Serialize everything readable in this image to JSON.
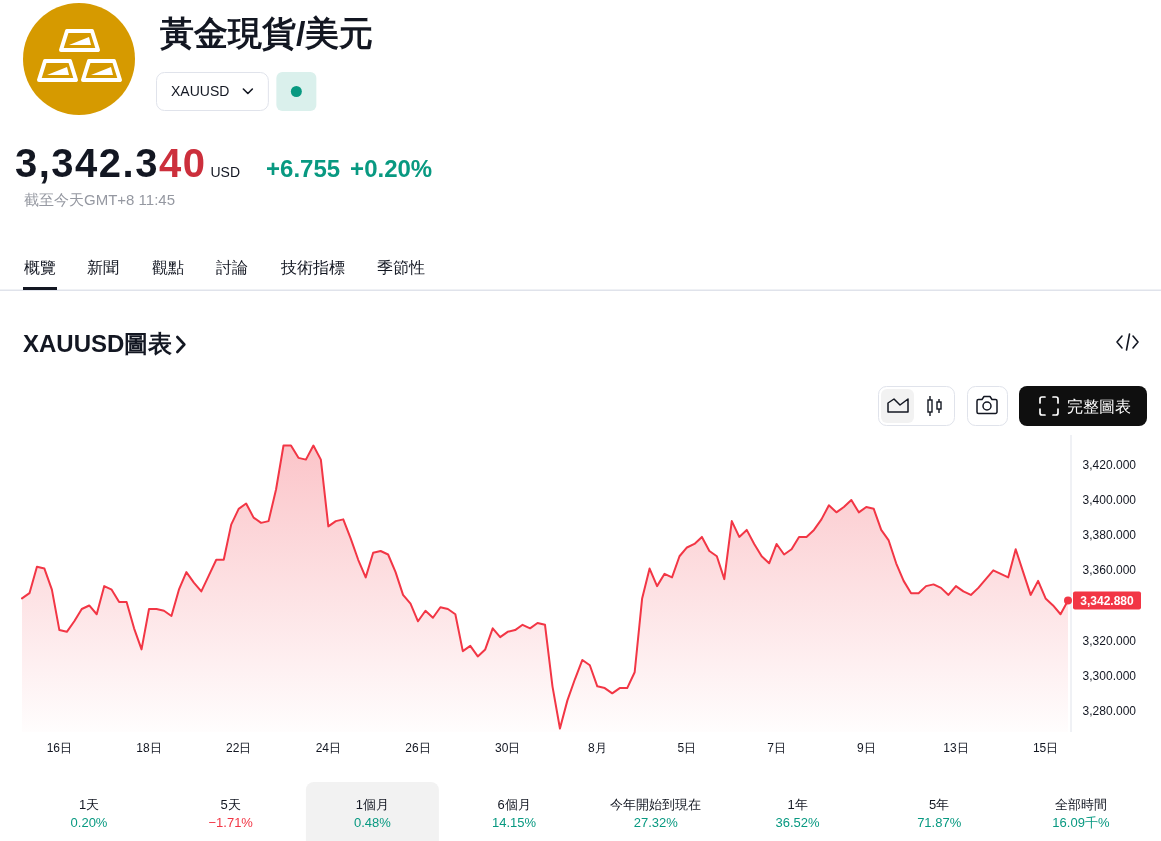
{
  "chart_data": {
    "type": "area",
    "title": "黃金現貨/美元",
    "subtitle": "XAUUSD圖表",
    "annotations": [
      "XAUUSD",
      "3,342.340",
      "USD",
      "+6.755",
      "+0.20%",
      "截至今天GMT+8 11:45",
      "概覽",
      "新聞",
      "觀點",
      "討論",
      "技術指標",
      "季節性",
      "完整圖表",
      "1天",
      "0.20%",
      "5天",
      "−1.71%",
      "1個月",
      "0.48%",
      "6個月",
      "14.15%",
      "今年開始到現在",
      "27.32%",
      "1年",
      "36.52%",
      "5年",
      "71.87%",
      "全部時間",
      "16.09千%",
      "3,342.880"
    ],
    "categories": [
      null,
      null,
      null,
      null,
      null,
      "16日",
      null,
      null,
      null,
      null,
      null,
      null,
      null,
      null,
      null,
      null,
      null,
      "18日",
      null,
      null,
      null,
      null,
      null,
      null,
      null,
      null,
      null,
      null,
      null,
      "22日",
      null,
      null,
      null,
      null,
      null,
      null,
      null,
      null,
      null,
      null,
      null,
      "24日",
      null,
      null,
      null,
      null,
      null,
      null,
      null,
      null,
      null,
      null,
      null,
      "26日",
      null,
      null,
      null,
      null,
      null,
      null,
      null,
      null,
      null,
      null,
      null,
      "30日",
      null,
      null,
      null,
      null,
      null,
      null,
      null,
      null,
      null,
      null,
      null,
      "8月",
      null,
      null,
      null,
      null,
      null,
      null,
      null,
      null,
      null,
      null,
      null,
      "5日",
      null,
      null,
      null,
      null,
      null,
      null,
      null,
      null,
      null,
      null,
      null,
      "7日",
      null,
      null,
      null,
      null,
      null,
      null,
      null,
      null,
      null,
      null,
      null,
      "9日",
      null,
      null,
      null,
      null,
      null,
      null,
      null,
      null,
      null,
      null,
      null,
      "13日",
      null,
      null,
      null,
      null,
      null,
      null,
      null,
      null,
      null,
      null,
      null,
      "15日",
      null,
      null,
      null
    ],
    "series": [
      {
        "color": "#f23645",
        "values": [
          3344,
          3347,
          3362,
          3361,
          3349,
          3326,
          3325,
          3331,
          3338,
          3340,
          3335,
          3351,
          3349,
          3342,
          3342,
          3327,
          3315,
          3338,
          3338,
          3337,
          3334,
          3349,
          3359,
          3353,
          3348,
          3357,
          3366,
          3366,
          3386,
          3395,
          3398,
          3390,
          3387,
          3388,
          3406,
          3431,
          3431,
          3424,
          3423,
          3431,
          3423,
          3385,
          3388,
          3389,
          3378,
          3366,
          3356,
          3370,
          3371,
          3369,
          3359,
          3346,
          3341,
          3331,
          3337,
          3333,
          3339,
          3338,
          3335,
          3314,
          3317,
          3311,
          3315,
          3327,
          3322,
          3325,
          3326,
          3329,
          3327,
          3330,
          3329,
          3294,
          3270,
          3286,
          3298,
          3309,
          3306,
          3294,
          3293,
          3290,
          3293,
          3293,
          3302,
          3344,
          3361,
          3351,
          3358,
          3356,
          3368,
          3373,
          3375,
          3379,
          3371,
          3368,
          3355,
          3388,
          3379,
          3383,
          3375,
          3368,
          3364,
          3375,
          3369,
          3372,
          3379,
          3379,
          3383,
          3389,
          3397,
          3393,
          3396,
          3400,
          3393,
          3396,
          3395,
          3383,
          3377,
          3364,
          3354,
          3347,
          3347,
          3351,
          3352,
          3350,
          3346,
          3351,
          3348,
          3346,
          3350,
          3355,
          3360,
          3358,
          3356,
          3372,
          3359,
          3346,
          3354,
          3344,
          3340,
          3335,
          3342.88
        ]
      }
    ],
    "ylim": [
      3268,
      3437
    ],
    "yticks": [
      {
        "value": 3280,
        "label": "3,280.000"
      },
      {
        "value": 3300,
        "label": "3,300.000"
      },
      {
        "value": 3320,
        "label": "3,320.000"
      },
      {
        "value": 3360,
        "label": "3,360.000"
      },
      {
        "value": 3380,
        "label": "3,380.000"
      },
      {
        "value": 3400,
        "label": "3,400.000"
      },
      {
        "value": 3420,
        "label": "3,420.000"
      }
    ]
  }
}
